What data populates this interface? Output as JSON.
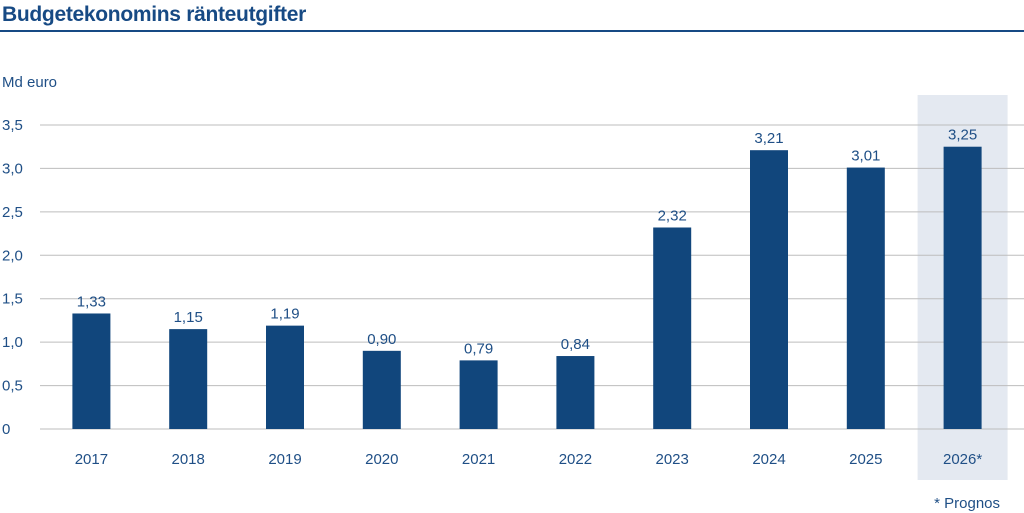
{
  "chart_data": {
    "type": "bar",
    "title": "Budgetekonomins ränteutgifter",
    "ylabel": "Md euro",
    "categories": [
      "2017",
      "2018",
      "2019",
      "2020",
      "2021",
      "2022",
      "2023",
      "2024",
      "2025",
      "2026*"
    ],
    "values": [
      1.33,
      1.15,
      1.19,
      0.9,
      0.79,
      0.84,
      2.32,
      3.21,
      3.01,
      3.25
    ],
    "data_labels": [
      "1,33",
      "1,15",
      "1,19",
      "0,90",
      "0,79",
      "0,84",
      "2,32",
      "3,21",
      "3,01",
      "3,25"
    ],
    "yticks": [
      0,
      0.5,
      1.0,
      1.5,
      2.0,
      2.5,
      3.0,
      3.5
    ],
    "ytick_labels": [
      "0",
      "0,5",
      "1,0",
      "1,5",
      "2,0",
      "2,5",
      "3,0",
      "3,5"
    ],
    "ylim": [
      0,
      3.5
    ],
    "grid": true,
    "highlighted_category": "2026*",
    "footnote": "* Prognos",
    "colors": {
      "bar": "#11467c",
      "highlight": "#e4e9f1",
      "grid": "#bdbdbd",
      "text": "#1f4f86"
    }
  }
}
